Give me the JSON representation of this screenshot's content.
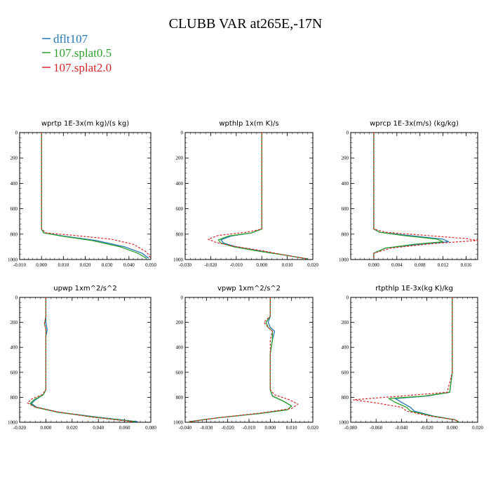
{
  "figure": {
    "title": "CLUBB VAR at265E,-17N"
  },
  "legend": [
    {
      "label": "dflt107",
      "color": "#1f77b4"
    },
    {
      "label": "107.splat0.5",
      "color": "#2ca02c"
    },
    {
      "label": "107.splat2.0",
      "color": "#d62728"
    }
  ],
  "chart_data": [
    {
      "type": "line",
      "title": "wprtp  1E-3x(m kg)/(s kg)",
      "xlim": [
        -0.01,
        0.05
      ],
      "ylim": [
        1000,
        0
      ],
      "xticks": [
        -0.01,
        0.0,
        0.01,
        0.02,
        0.03,
        0.04,
        0.05
      ],
      "xtick_labels": [
        "-0.010",
        "0.000",
        "0.010",
        "0.020",
        "0.030",
        "0.040",
        "0.050"
      ],
      "yticks": [
        0,
        200,
        400,
        600,
        800,
        1000
      ],
      "ytick_labels": [
        "0",
        "200",
        "400",
        "600",
        "800",
        "1000"
      ],
      "series": [
        {
          "name": "dflt107",
          "x": [
            0.0,
            0.0,
            0.0,
            0.0,
            0.0,
            0.001,
            0.01,
            0.025,
            0.038,
            0.046,
            0.049
          ],
          "y": [
            0,
            200,
            400,
            600,
            760,
            790,
            815,
            850,
            900,
            950,
            990
          ]
        },
        {
          "name": "107.splat0.5",
          "x": [
            0.0,
            0.0,
            0.0,
            0.0,
            0.0,
            0.001,
            0.009,
            0.023,
            0.036,
            0.044,
            0.048
          ],
          "y": [
            0,
            200,
            400,
            600,
            760,
            790,
            815,
            850,
            900,
            950,
            990
          ]
        },
        {
          "name": "107.splat2.0",
          "x": [
            0.0,
            0.0,
            0.0,
            0.0,
            0.0,
            0.002,
            0.015,
            0.032,
            0.042,
            0.048,
            0.05
          ],
          "y": [
            0,
            200,
            400,
            600,
            760,
            790,
            810,
            840,
            880,
            940,
            990
          ]
        }
      ]
    },
    {
      "type": "line",
      "title": "wpthlp  1x(m K)/s",
      "xlim": [
        -0.03,
        0.02
      ],
      "ylim": [
        1000,
        0
      ],
      "xticks": [
        -0.03,
        -0.02,
        -0.01,
        0.0,
        0.01,
        0.02
      ],
      "xtick_labels": [
        "-0.030",
        "-0.020",
        "-0.010",
        "0.000",
        "0.010",
        "0.020"
      ],
      "yticks": [
        0,
        200,
        400,
        600,
        800,
        1000
      ],
      "ytick_labels": [
        "0",
        "200",
        "400",
        "600",
        "800",
        "1000"
      ],
      "series": [
        {
          "name": "dflt107",
          "x": [
            0.0,
            0.0,
            0.0,
            0.0,
            0.0,
            -0.004,
            -0.012,
            -0.016,
            -0.015,
            -0.01,
            0.0,
            0.009,
            0.018
          ],
          "y": [
            0,
            200,
            400,
            600,
            760,
            790,
            815,
            845,
            870,
            900,
            935,
            965,
            995
          ]
        },
        {
          "name": "107.splat0.5",
          "x": [
            0.0,
            0.0,
            0.0,
            0.0,
            0.0,
            -0.004,
            -0.013,
            -0.017,
            -0.016,
            -0.011,
            -0.001,
            0.009,
            0.018
          ],
          "y": [
            0,
            200,
            400,
            600,
            760,
            790,
            815,
            845,
            870,
            900,
            935,
            965,
            995
          ]
        },
        {
          "name": "107.splat2.0",
          "x": [
            0.0,
            0.0,
            0.0,
            0.0,
            0.0,
            -0.006,
            -0.017,
            -0.021,
            -0.018,
            -0.011,
            0.0,
            0.009,
            0.018
          ],
          "y": [
            0,
            200,
            400,
            600,
            760,
            785,
            810,
            840,
            865,
            895,
            930,
            965,
            995
          ]
        }
      ]
    },
    {
      "type": "line",
      "title": "wprcp  1E-3x(m/s) (kg/kg)",
      "xlim": [
        -0.004,
        0.018
      ],
      "ylim": [
        1000,
        0
      ],
      "xticks": [
        0.0,
        0.004,
        0.008,
        0.012,
        0.016
      ],
      "xtick_labels": [
        "0.000",
        "0.004",
        "0.008",
        "0.012",
        "0.016"
      ],
      "yticks": [
        0,
        200,
        400,
        600,
        800,
        1000
      ],
      "ytick_labels": [
        "0",
        "200",
        "400",
        "600",
        "800",
        "1000"
      ],
      "series": [
        {
          "name": "dflt107",
          "x": [
            0.0,
            0.0,
            0.0,
            0.0,
            0.0,
            0.001,
            0.006,
            0.012,
            0.013,
            0.008,
            0.002,
            0.0,
            0.0
          ],
          "y": [
            0,
            200,
            400,
            600,
            760,
            785,
            810,
            840,
            860,
            880,
            910,
            950,
            990
          ]
        },
        {
          "name": "107.splat0.5",
          "x": [
            0.0,
            0.0,
            0.0,
            0.0,
            0.0,
            0.001,
            0.005,
            0.011,
            0.012,
            0.007,
            0.002,
            0.0,
            0.0
          ],
          "y": [
            0,
            200,
            400,
            600,
            760,
            785,
            810,
            840,
            860,
            880,
            910,
            950,
            990
          ]
        },
        {
          "name": "107.splat2.0",
          "x": [
            0.0,
            0.0,
            0.0,
            0.0,
            0.0,
            0.002,
            0.009,
            0.016,
            0.018,
            0.01,
            0.003,
            0.0,
            0.0
          ],
          "y": [
            0,
            200,
            400,
            600,
            760,
            785,
            810,
            835,
            850,
            875,
            910,
            950,
            990
          ]
        }
      ]
    },
    {
      "type": "line",
      "title": "upwp  1xm^2/s^2",
      "xlim": [
        -0.02,
        0.08
      ],
      "ylim": [
        1000,
        0
      ],
      "xticks": [
        -0.02,
        0.0,
        0.02,
        0.04,
        0.06,
        0.08
      ],
      "xtick_labels": [
        "-0.020",
        "0.000",
        "0.020",
        "0.040",
        "0.060",
        "0.080"
      ],
      "yticks": [
        0,
        200,
        400,
        600,
        800,
        1000
      ],
      "ytick_labels": [
        "0",
        "200",
        "400",
        "600",
        "800",
        "1000"
      ],
      "series": [
        {
          "name": "dflt107",
          "x": [
            0.0,
            0.0,
            0.0,
            0.001,
            0.0,
            0.0,
            0.0,
            0.0,
            -0.002,
            -0.008,
            -0.011,
            -0.007,
            0.01,
            0.04,
            0.07
          ],
          "y": [
            0,
            150,
            200,
            260,
            310,
            400,
            600,
            740,
            780,
            820,
            850,
            880,
            920,
            960,
            995
          ]
        },
        {
          "name": "107.splat0.5",
          "x": [
            0.0,
            0.0,
            -0.001,
            0.0,
            0.0,
            0.0,
            0.0,
            0.0,
            -0.002,
            -0.009,
            -0.012,
            -0.008,
            0.009,
            0.038,
            0.068
          ],
          "y": [
            0,
            150,
            210,
            260,
            310,
            400,
            600,
            740,
            780,
            820,
            850,
            880,
            920,
            960,
            995
          ]
        },
        {
          "name": "107.splat2.0",
          "x": [
            0.0,
            0.0,
            -0.001,
            0.0,
            0.0,
            0.0,
            0.0,
            0.0,
            -0.003,
            -0.011,
            -0.014,
            -0.009,
            0.008,
            0.036,
            0.066
          ],
          "y": [
            0,
            150,
            210,
            260,
            310,
            400,
            600,
            740,
            780,
            815,
            845,
            875,
            915,
            960,
            995
          ]
        }
      ]
    },
    {
      "type": "line",
      "title": "vpwp  1xm^2/s^2",
      "xlim": [
        -0.04,
        0.02
      ],
      "ylim": [
        1000,
        0
      ],
      "xticks": [
        -0.04,
        -0.03,
        -0.02,
        -0.01,
        0.0,
        0.01,
        0.02
      ],
      "xtick_labels": [
        "-0.040",
        "-0.030",
        "-0.020",
        "-0.010",
        "0.000",
        "0.010",
        "0.020"
      ],
      "yticks": [
        0,
        200,
        400,
        600,
        800,
        1000
      ],
      "ytick_labels": [
        "0",
        "200",
        "400",
        "600",
        "800",
        "1000"
      ],
      "series": [
        {
          "name": "dflt107",
          "x": [
            0.0,
            0.0,
            -0.001,
            0.0,
            0.002,
            0.001,
            0.0,
            0.0,
            0.0,
            0.001,
            0.006,
            0.01,
            0.008,
            -0.005,
            -0.025,
            -0.038
          ],
          "y": [
            0,
            150,
            200,
            240,
            270,
            340,
            450,
            600,
            740,
            790,
            830,
            870,
            900,
            930,
            965,
            995
          ]
        },
        {
          "name": "107.splat0.5",
          "x": [
            0.0,
            0.0,
            -0.002,
            -0.001,
            0.001,
            0.001,
            0.0,
            0.0,
            0.0,
            0.001,
            0.006,
            0.01,
            0.008,
            -0.005,
            -0.025,
            -0.038
          ],
          "y": [
            0,
            150,
            200,
            240,
            270,
            340,
            450,
            600,
            740,
            790,
            830,
            870,
            900,
            930,
            965,
            995
          ]
        },
        {
          "name": "107.splat2.0",
          "x": [
            0.0,
            0.0,
            -0.003,
            -0.001,
            0.001,
            0.0,
            0.0,
            0.0,
            0.0,
            0.002,
            0.009,
            0.013,
            0.01,
            -0.004,
            -0.025,
            -0.038
          ],
          "y": [
            0,
            150,
            200,
            240,
            270,
            340,
            450,
            600,
            740,
            780,
            820,
            855,
            890,
            925,
            965,
            995
          ]
        }
      ]
    },
    {
      "type": "line",
      "title": "rtpthlp  1E-3x(kg K)/kg",
      "xlim": [
        -0.08,
        0.02
      ],
      "ylim": [
        1000,
        0
      ],
      "xticks": [
        -0.08,
        -0.06,
        -0.04,
        -0.02,
        0.0,
        0.02
      ],
      "xtick_labels": [
        "-0.080",
        "-0.060",
        "-0.040",
        "-0.020",
        "0.000",
        "0.020"
      ],
      "yticks": [
        0,
        200,
        400,
        600,
        800,
        1000
      ],
      "ytick_labels": [
        "0",
        "200",
        "400",
        "600",
        "800",
        "1000"
      ],
      "series": [
        {
          "name": "dflt107",
          "x": [
            0.0,
            0.0,
            0.0,
            0.0,
            -0.002,
            -0.02,
            -0.045,
            -0.04,
            -0.033,
            -0.03,
            -0.015,
            0.002,
            0.005
          ],
          "y": [
            0,
            200,
            400,
            600,
            760,
            790,
            810,
            840,
            880,
            910,
            950,
            980,
            995
          ]
        },
        {
          "name": "107.splat0.5",
          "x": [
            0.0,
            0.0,
            0.0,
            0.0,
            -0.002,
            -0.022,
            -0.05,
            -0.045,
            -0.036,
            -0.033,
            -0.016,
            0.002,
            0.005
          ],
          "y": [
            0,
            200,
            400,
            600,
            760,
            790,
            810,
            840,
            880,
            910,
            950,
            980,
            995
          ]
        },
        {
          "name": "107.splat2.0",
          "x": [
            0.0,
            0.0,
            0.0,
            0.0,
            -0.004,
            -0.04,
            -0.078,
            -0.06,
            -0.04,
            -0.036,
            -0.018,
            0.002,
            0.005
          ],
          "y": [
            0,
            200,
            400,
            600,
            760,
            790,
            820,
            845,
            880,
            910,
            950,
            980,
            995
          ]
        }
      ]
    }
  ]
}
